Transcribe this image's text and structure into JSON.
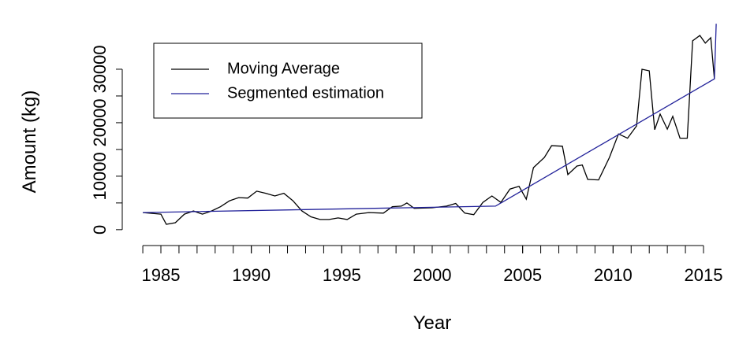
{
  "chart_data": {
    "type": "line",
    "x_label": "Year",
    "y_label": "Amount (kg)",
    "xlim": [
      1983.5,
      2016.5
    ],
    "ylim": [
      -1200,
      40000
    ],
    "xticks": [
      1985,
      1990,
      1995,
      2000,
      2005,
      2010,
      2015
    ],
    "xticks_minor": [
      1984,
      1985,
      1986,
      1987,
      1988,
      1989,
      1990,
      1991,
      1992,
      1993,
      1994,
      1995,
      1996,
      1997,
      1998,
      1999,
      2000,
      2001,
      2002,
      2003,
      2004,
      2005,
      2006,
      2007,
      2008,
      2009,
      2010,
      2011,
      2012,
      2013,
      2014,
      2015
    ],
    "yticks": [
      0,
      10000,
      20000,
      30000
    ],
    "yticks_minor": [
      5000,
      15000,
      25000
    ],
    "legend": "topleft",
    "series": [
      {
        "name": "Moving Average",
        "color": "#000000",
        "x": [
          1984,
          1985,
          1985.3,
          1985.8,
          1986.3,
          1986.8,
          1987.3,
          1987.8,
          1988.3,
          1988.8,
          1989.3,
          1989.8,
          1990.3,
          1990.8,
          1991.3,
          1991.8,
          1992.3,
          1992.8,
          1993.3,
          1993.8,
          1994.3,
          1994.8,
          1995.3,
          1995.8,
          1996.5,
          1997.3,
          1997.8,
          1998.3,
          1998.6,
          1999,
          2000,
          2000.8,
          2001.3,
          2001.8,
          2002.3,
          2002.8,
          2003.3,
          2003.8,
          2004.3,
          2004.8,
          2005.2,
          2005.6,
          2006.2,
          2006.6,
          2007.2,
          2007.5,
          2008,
          2008.3,
          2008.6,
          2009.2,
          2009.8,
          2010.3,
          2010.8,
          2011.3,
          2011.6,
          2012,
          2012.3,
          2012.6,
          2013,
          2013.3,
          2013.7,
          2014.1,
          2014.4,
          2014.8,
          2015.1,
          2015.4,
          2015.6
        ],
        "values": [
          3200,
          2900,
          1000,
          1300,
          2900,
          3500,
          2900,
          3500,
          4300,
          5400,
          6000,
          5900,
          7200,
          6800,
          6300,
          6800,
          5400,
          3500,
          2400,
          1900,
          1900,
          2200,
          1900,
          2900,
          3200,
          3100,
          4300,
          4400,
          5000,
          4000,
          4100,
          4400,
          4900,
          3100,
          2800,
          5100,
          6300,
          5100,
          7600,
          8100,
          5700,
          11600,
          13500,
          15700,
          15600,
          10300,
          11900,
          12100,
          9400,
          9300,
          13500,
          17900,
          17100,
          19400,
          30000,
          29700,
          18700,
          21600,
          18800,
          21200,
          17100,
          17100,
          35300,
          36300,
          34900,
          35900,
          28200
        ]
      },
      {
        "name": "Segmented estimation",
        "color": "#22229a",
        "x": [
          1984,
          2003.5,
          2015.6,
          2015.7
        ],
        "values": [
          3200,
          4400,
          28200,
          38500
        ]
      }
    ]
  }
}
